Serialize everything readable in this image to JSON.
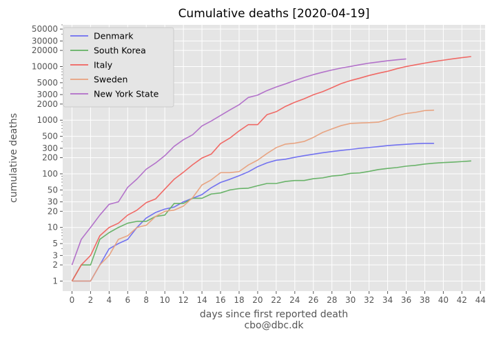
{
  "chart_data": {
    "type": "line",
    "title": "Cumulative deaths [2020-04-19]",
    "xlabel": "days since first reported death",
    "xlabel_note": "cbo@dbc.dk",
    "ylabel": "cumulative deaths",
    "yscale": "log",
    "xlim": [
      -1.0,
      44.5
    ],
    "ylim": [
      0.65,
      60000
    ],
    "x_ticks": [
      0,
      2,
      4,
      6,
      8,
      10,
      12,
      14,
      16,
      18,
      20,
      22,
      24,
      26,
      28,
      30,
      32,
      34,
      36,
      38,
      40,
      42,
      44
    ],
    "y_ticks": [
      1,
      2,
      3,
      5,
      10,
      20,
      30,
      50,
      100,
      200,
      300,
      500,
      1000,
      2000,
      3000,
      5000,
      10000,
      20000,
      30000,
      50000
    ],
    "y_tick_labels": [
      "1",
      "2",
      "3",
      "5",
      "10",
      "20",
      "30",
      "50",
      "100",
      "200",
      "300",
      "500",
      "1000",
      "2000",
      "3000",
      "5000",
      "10000",
      "20000",
      "30000",
      "50000"
    ],
    "grid": true,
    "legend_position": "top-left",
    "series": [
      {
        "name": "Denmark",
        "color": "#6c6cf0",
        "x": [
          0,
          1,
          2,
          3,
          4,
          5,
          6,
          7,
          8,
          9,
          10,
          11,
          12,
          13,
          14,
          15,
          16,
          17,
          18,
          19,
          20,
          21,
          22,
          23,
          24,
          25,
          26,
          27,
          28,
          29,
          30,
          31,
          32,
          33,
          34,
          35,
          36,
          37,
          38,
          39
        ],
        "values": [
          1,
          1,
          1,
          2,
          4,
          5,
          6,
          10,
          15,
          19,
          22,
          24,
          30,
          35,
          41,
          55,
          69,
          79,
          92,
          109,
          136,
          160,
          179,
          187,
          203,
          218,
          232,
          247,
          260,
          273,
          285,
          299,
          309,
          321,
          336,
          346,
          355,
          364,
          370,
          370
        ]
      },
      {
        "name": "South Korea",
        "color": "#62b062",
        "x": [
          0,
          1,
          2,
          3,
          4,
          5,
          6,
          7,
          8,
          9,
          10,
          11,
          12,
          13,
          14,
          15,
          16,
          17,
          18,
          19,
          20,
          21,
          22,
          23,
          24,
          25,
          26,
          27,
          28,
          29,
          30,
          31,
          32,
          33,
          34,
          35,
          36,
          37,
          38,
          39,
          40,
          41,
          42,
          43
        ],
        "values": [
          1,
          2,
          2,
          6,
          8,
          10,
          12,
          13,
          13,
          16,
          17,
          28,
          28,
          35,
          35,
          42,
          44,
          50,
          53,
          54,
          60,
          66,
          66,
          72,
          75,
          75,
          81,
          84,
          91,
          94,
          102,
          104,
          111,
          120,
          126,
          131,
          139,
          144,
          152,
          158,
          162,
          165,
          169,
          174
        ]
      },
      {
        "name": "Italy",
        "color": "#f0625e",
        "x": [
          0,
          1,
          2,
          3,
          4,
          5,
          6,
          7,
          8,
          9,
          10,
          11,
          12,
          13,
          14,
          15,
          16,
          17,
          18,
          19,
          20,
          21,
          22,
          23,
          24,
          25,
          26,
          27,
          28,
          29,
          30,
          31,
          32,
          33,
          34,
          35,
          36,
          37,
          38,
          39,
          40,
          41,
          42,
          43
        ],
        "values": [
          1,
          2,
          3,
          7,
          10,
          12,
          17,
          21,
          29,
          34,
          52,
          79,
          107,
          148,
          197,
          233,
          366,
          463,
          631,
          827,
          827,
          1266,
          1441,
          1809,
          2158,
          2503,
          2978,
          3405,
          4032,
          4825,
          5476,
          6077,
          6820,
          7503,
          8165,
          9134,
          10023,
          10779,
          11591,
          12428,
          13155,
          13915,
          14681,
          15362
        ]
      },
      {
        "name": "Sweden",
        "color": "#e8a07c",
        "x": [
          0,
          1,
          2,
          3,
          4,
          5,
          6,
          7,
          8,
          9,
          10,
          11,
          12,
          13,
          14,
          15,
          16,
          17,
          18,
          19,
          20,
          21,
          22,
          23,
          24,
          25,
          26,
          27,
          28,
          29,
          30,
          31,
          32,
          33,
          34,
          35,
          36,
          37,
          38,
          39
        ],
        "values": [
          1,
          1,
          1,
          2,
          3,
          6,
          7,
          10,
          11,
          16,
          20,
          21,
          25,
          36,
          62,
          77,
          105,
          105,
          110,
          146,
          180,
          239,
          308,
          358,
          373,
          401,
          477,
          591,
          687,
          793,
          870,
          887,
          899,
          919,
          1033,
          1203,
          1333,
          1400,
          1511,
          1540
        ]
      },
      {
        "name": "New York State",
        "color": "#b06cc8",
        "x": [
          0,
          1,
          2,
          3,
          4,
          5,
          6,
          7,
          8,
          9,
          10,
          11,
          12,
          13,
          14,
          15,
          16,
          17,
          18,
          19,
          20,
          21,
          22,
          23,
          24,
          25,
          26,
          27,
          28,
          29,
          30,
          31,
          32,
          33,
          34,
          35,
          36
        ],
        "values": [
          2,
          6,
          10,
          17,
          27,
          30,
          56,
          80,
          122,
          159,
          218,
          325,
          432,
          535,
          782,
          965,
          1224,
          1550,
          1941,
          2653,
          2935,
          3565,
          4159,
          4758,
          5489,
          6268,
          7067,
          7844,
          8627,
          9385,
          10056,
          10834,
          11586,
          12192,
          12822,
          13362,
          13869
        ]
      }
    ]
  }
}
